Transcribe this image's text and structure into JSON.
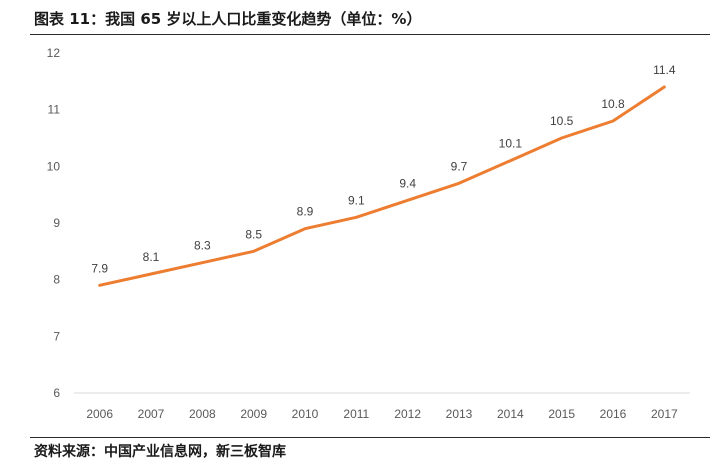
{
  "chart_data": {
    "type": "line",
    "title": "图表 11：我国 65 岁以上人口比重变化趋势（单位：%）",
    "categories": [
      "2006",
      "2007",
      "2008",
      "2009",
      "2010",
      "2011",
      "2012",
      "2013",
      "2014",
      "2015",
      "2016",
      "2017"
    ],
    "series": [
      {
        "values": [
          7.9,
          8.1,
          8.3,
          8.5,
          8.9,
          9.1,
          9.4,
          9.7,
          10.1,
          10.5,
          10.8,
          11.4
        ]
      }
    ],
    "ylim": [
      6,
      12
    ],
    "yticks": [
      "6",
      "7",
      "8",
      "9",
      "10",
      "11",
      "12"
    ],
    "grid": false,
    "line_color": "#ED7D31",
    "axis_color": "#D9D9D9"
  },
  "source": "资料来源：中国产业信息网，新三板智库"
}
